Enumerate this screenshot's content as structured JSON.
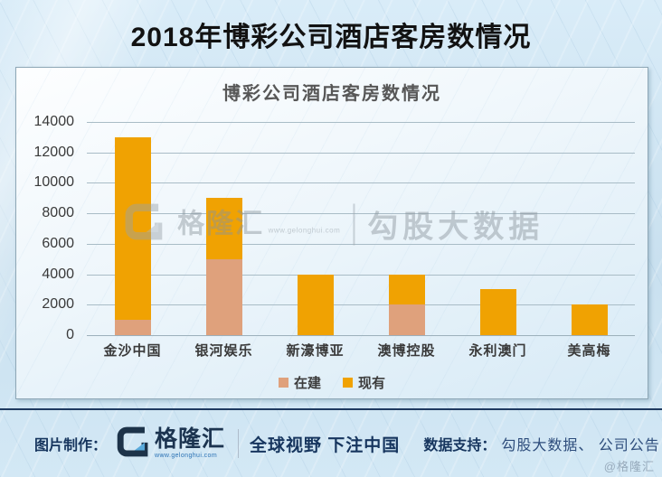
{
  "page": {
    "title": "2018年博彩公司酒店客房数情况",
    "corner_watermark": "@格隆汇"
  },
  "chart_data": {
    "type": "bar",
    "stacked": true,
    "title": "博彩公司酒店客房数情况",
    "categories": [
      "金沙中国",
      "银河娱乐",
      "新濠博亚",
      "澳博控股",
      "永利澳门",
      "美高梅"
    ],
    "series": [
      {
        "name": "在建",
        "color": "#DFA17C",
        "values": [
          1000,
          5000,
          0,
          2000,
          0,
          0
        ]
      },
      {
        "name": "现有",
        "color": "#F0A202",
        "values": [
          12000,
          4000,
          4000,
          2000,
          3000,
          2000
        ]
      }
    ],
    "totals": [
      13000,
      9000,
      4000,
      4000,
      3000,
      2000
    ],
    "xlabel": "",
    "ylabel": "",
    "ylim": [
      0,
      14000
    ],
    "ytick_step": 2000,
    "grid": true,
    "legend_position": "bottom"
  },
  "chart_watermark": {
    "brand": "格隆汇",
    "brand_url": "www.gelonghui.com",
    "suffix": "勾股大数据"
  },
  "footer": {
    "made_by_label": "图片制作：",
    "brand": "格隆汇",
    "brand_url": "www.gelonghui.com",
    "slogan": "全球视野 下注中国",
    "data_support_label": "数据支持：",
    "data_sources": "勾股大数据、 公司公告"
  },
  "colors": {
    "accent_orange": "#F0A202",
    "accent_tan": "#DFA17C",
    "footer_navy": "#16355E",
    "page_background": "#CDE3F1"
  }
}
